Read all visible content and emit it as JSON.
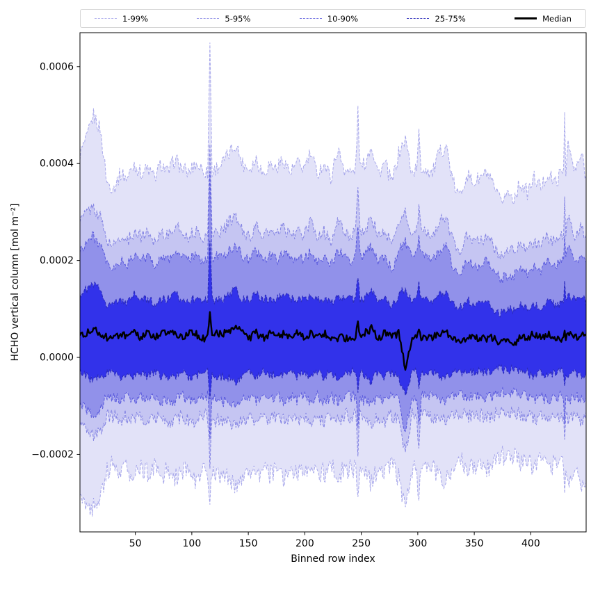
{
  "legend": {
    "items": [
      {
        "label": "1-99%",
        "line": "dashed",
        "color": "rgba(80,80,215,0.45)",
        "weight": 1.2
      },
      {
        "label": "5-95%",
        "line": "dashed",
        "color": "rgba(75,75,215,0.6)",
        "weight": 1.2
      },
      {
        "label": "10-90%",
        "line": "dashed",
        "color": "rgba(60,60,215,0.75)",
        "weight": 1.3
      },
      {
        "label": "25-75%",
        "line": "dashed",
        "color": "rgba(40,40,185,0.95)",
        "weight": 1.5
      },
      {
        "label": "Median",
        "line": "solid",
        "color": "#000000",
        "weight": 3
      }
    ]
  },
  "axes": {
    "xlabel": "Binned row index",
    "ylabel": "HCHO vertical column [mol m⁻²]",
    "xticks": [
      50,
      100,
      150,
      200,
      250,
      300,
      350,
      400
    ],
    "yticks": [
      -0.0002,
      0,
      0.0002,
      0.0004,
      0.0006
    ],
    "xlim": [
      1,
      449
    ],
    "ylim": [
      -0.00036,
      0.00067
    ]
  },
  "chart_data": {
    "type": "area",
    "description": "Percentile fan chart of HCHO vertical column versus binned row index. Shaded bands show 1-99%, 5-95%, 10-90% and 25-75% percentile ranges (blue, dashed boundaries); thick black line is the median. Upper envelope ~0.0004 with narrow spikes to ~0.00065 near row 116 and ~0.0005 near rows 247, 301 and 430; lower envelope ~-0.00025. Values sampled from the plot; value_scale multiplies series values.",
    "value_scale": 1e-05,
    "x": [
      1,
      7,
      13,
      19,
      25,
      31,
      37,
      43,
      49,
      55,
      61,
      67,
      73,
      79,
      85,
      91,
      97,
      103,
      109,
      114,
      116,
      118,
      121,
      127,
      133,
      139,
      145,
      151,
      157,
      163,
      169,
      175,
      181,
      187,
      193,
      199,
      205,
      211,
      217,
      223,
      229,
      235,
      241,
      245,
      247,
      249,
      253,
      259,
      265,
      271,
      277,
      283,
      289,
      295,
      299,
      301,
      303,
      307,
      313,
      319,
      325,
      331,
      337,
      343,
      349,
      355,
      361,
      367,
      373,
      379,
      385,
      391,
      397,
      403,
      409,
      415,
      421,
      427,
      429,
      430,
      431,
      433,
      439,
      445,
      449
    ],
    "series": [
      {
        "name": "p99",
        "label": "99th percentile",
        "jitter": 1.6,
        "line_color": "rgba(80,80,215,0.45)",
        "line_width": 1,
        "values": [
          42,
          45,
          50,
          47,
          36,
          35,
          38,
          37,
          40,
          38,
          39,
          37,
          40,
          38,
          41,
          39,
          38,
          40,
          39,
          38,
          65,
          38,
          39,
          40,
          42,
          44,
          40,
          39,
          41,
          38,
          40,
          39,
          41,
          38,
          40,
          39,
          42,
          38,
          40,
          37,
          43,
          39,
          38,
          39,
          51,
          39,
          40,
          44,
          38,
          40,
          36,
          42,
          45,
          38,
          39,
          46,
          39,
          39,
          38,
          42,
          44,
          36,
          33,
          38,
          36,
          37,
          38,
          35,
          32,
          34,
          33,
          36,
          34,
          37,
          35,
          38,
          36,
          38,
          39,
          51,
          39,
          44,
          38,
          42,
          37
        ]
      },
      {
        "name": "p95",
        "label": "95th percentile",
        "jitter": 1.3,
        "line_color": "rgba(75,75,215,0.6)",
        "line_width": 1,
        "values": [
          28,
          30,
          31,
          29,
          24,
          23,
          25,
          24,
          26,
          25,
          26,
          24,
          26,
          25,
          27,
          26,
          25,
          26,
          25,
          25,
          45,
          25,
          26,
          26,
          28,
          29,
          26,
          25,
          27,
          25,
          26,
          25,
          27,
          25,
          26,
          25,
          28,
          25,
          26,
          24,
          28,
          26,
          25,
          26,
          34,
          26,
          26,
          29,
          25,
          26,
          23,
          28,
          30,
          25,
          26,
          31,
          26,
          26,
          25,
          28,
          29,
          24,
          22,
          25,
          24,
          24,
          25,
          23,
          21,
          22,
          22,
          24,
          22,
          24,
          23,
          25,
          24,
          25,
          26,
          33,
          26,
          29,
          25,
          27,
          24
        ]
      },
      {
        "name": "p90",
        "label": "90th percentile",
        "jitter": 1.1,
        "line_color": "rgba(60,60,215,0.75)",
        "line_width": 1,
        "values": [
          22,
          24,
          25,
          23,
          19,
          18,
          20,
          19,
          21,
          20,
          21,
          19,
          21,
          20,
          22,
          21,
          20,
          21,
          20,
          20,
          38,
          20,
          21,
          21,
          22,
          23,
          21,
          20,
          22,
          20,
          21,
          20,
          22,
          20,
          21,
          20,
          22,
          20,
          21,
          19,
          22,
          21,
          20,
          21,
          28,
          21,
          21,
          23,
          20,
          21,
          18,
          22,
          24,
          20,
          21,
          25,
          21,
          21,
          20,
          22,
          23,
          19,
          17,
          20,
          19,
          19,
          20,
          18,
          16,
          17,
          17,
          19,
          17,
          19,
          18,
          20,
          19,
          20,
          21,
          26,
          21,
          23,
          20,
          21,
          19
        ]
      },
      {
        "name": "p75",
        "label": "75th percentile",
        "jitter": 0.9,
        "line_color": "rgba(40,40,185,0.95)",
        "line_width": 1.1,
        "values": [
          13,
          14,
          15,
          14,
          11,
          11,
          12,
          11,
          13,
          12,
          12,
          11,
          12,
          12,
          13,
          12,
          12,
          12,
          12,
          12,
          24,
          12,
          12,
          12,
          13,
          14,
          12,
          12,
          13,
          12,
          12,
          12,
          13,
          12,
          12,
          12,
          13,
          12,
          12,
          11,
          13,
          12,
          12,
          12,
          17,
          12,
          12,
          14,
          12,
          12,
          10,
          13,
          14,
          12,
          12,
          15,
          12,
          12,
          12,
          13,
          13,
          11,
          10,
          12,
          11,
          11,
          12,
          10,
          9,
          10,
          10,
          11,
          10,
          11,
          10,
          12,
          11,
          11,
          12,
          16,
          12,
          13,
          12,
          13,
          11
        ]
      },
      {
        "name": "median",
        "label": "Median",
        "jitter": 0.8,
        "line_color": "#000000",
        "line_width": 2.4,
        "values": [
          5,
          5,
          6,
          5,
          4,
          4,
          5,
          4,
          5,
          4,
          5,
          4,
          5,
          5,
          5,
          4,
          5,
          5,
          4,
          4,
          10,
          4,
          5,
          5,
          5,
          6,
          5,
          4,
          5,
          4,
          5,
          4,
          5,
          4,
          5,
          4,
          5,
          4,
          5,
          4,
          4,
          4,
          4,
          4,
          7,
          4,
          5,
          6,
          4,
          5,
          4,
          5,
          -2,
          4,
          4,
          6,
          4,
          4,
          4,
          5,
          5,
          4,
          3,
          4,
          4,
          4,
          4,
          4,
          3,
          4,
          3,
          4,
          4,
          5,
          4,
          5,
          4,
          4,
          4,
          6,
          4,
          5,
          4,
          5,
          4
        ]
      },
      {
        "name": "p25",
        "label": "25th percentile",
        "jitter": 0.9,
        "line_color": "rgba(40,40,185,0.95)",
        "line_width": 1.1,
        "values": [
          -3,
          -4,
          -5,
          -4,
          -3,
          -3,
          -4,
          -3,
          -4,
          -3,
          -4,
          -3,
          -4,
          -4,
          -4,
          -3,
          -4,
          -4,
          -3,
          -3,
          -8,
          -3,
          -4,
          -4,
          -4,
          -5,
          -4,
          -3,
          -4,
          -3,
          -4,
          -3,
          -4,
          -3,
          -4,
          -3,
          -4,
          -3,
          -4,
          -3,
          -4,
          -3,
          -3,
          -3,
          -7,
          -3,
          -4,
          -5,
          -3,
          -4,
          -3,
          -4,
          -8,
          -3,
          -3,
          -7,
          -3,
          -3,
          -3,
          -4,
          -4,
          -3,
          -3,
          -3,
          -3,
          -3,
          -3,
          -3,
          -2,
          -3,
          -2,
          -3,
          -3,
          -4,
          -3,
          -4,
          -3,
          -3,
          -3,
          -6,
          -3,
          -4,
          -3,
          -4,
          -3
        ]
      },
      {
        "name": "p10",
        "label": "10th percentile",
        "jitter": 1.2,
        "line_color": "rgba(60,60,215,0.75)",
        "line_width": 1,
        "values": [
          -10,
          -11,
          -12,
          -11,
          -8,
          -8,
          -9,
          -8,
          -9,
          -8,
          -9,
          -8,
          -9,
          -9,
          -9,
          -8,
          -9,
          -9,
          -8,
          -8,
          -16,
          -8,
          -9,
          -9,
          -9,
          -10,
          -9,
          -8,
          -9,
          -8,
          -9,
          -8,
          -9,
          -8,
          -9,
          -8,
          -9,
          -8,
          -9,
          -8,
          -9,
          -8,
          -8,
          -8,
          -14,
          -8,
          -9,
          -10,
          -8,
          -9,
          -8,
          -9,
          -15,
          -8,
          -8,
          -14,
          -8,
          -8,
          -8,
          -9,
          -9,
          -8,
          -7,
          -8,
          -8,
          -8,
          -8,
          -8,
          -7,
          -8,
          -7,
          -8,
          -8,
          -9,
          -8,
          -9,
          -8,
          -8,
          -8,
          -13,
          -8,
          -9,
          -8,
          -9,
          -8
        ]
      },
      {
        "name": "p5",
        "label": "5th percentile",
        "jitter": 1.5,
        "line_color": "rgba(75,75,215,0.6)",
        "line_width": 1,
        "values": [
          -14,
          -15,
          -16,
          -15,
          -12,
          -12,
          -13,
          -12,
          -13,
          -12,
          -13,
          -12,
          -13,
          -13,
          -13,
          -12,
          -13,
          -13,
          -12,
          -12,
          -22,
          -12,
          -13,
          -13,
          -13,
          -14,
          -13,
          -12,
          -13,
          -12,
          -13,
          -12,
          -13,
          -12,
          -13,
          -12,
          -13,
          -12,
          -13,
          -12,
          -13,
          -12,
          -12,
          -12,
          -19,
          -12,
          -13,
          -14,
          -12,
          -13,
          -12,
          -13,
          -20,
          -12,
          -12,
          -19,
          -12,
          -12,
          -12,
          -13,
          -13,
          -12,
          -11,
          -12,
          -12,
          -12,
          -12,
          -12,
          -11,
          -12,
          -11,
          -12,
          -12,
          -13,
          -12,
          -13,
          -12,
          -12,
          -12,
          -18,
          -12,
          -13,
          -12,
          -13,
          -12
        ]
      },
      {
        "name": "p1",
        "label": "1st percentile",
        "jitter": 2.2,
        "line_color": "rgba(80,80,215,0.45)",
        "line_width": 1,
        "values": [
          -28,
          -30,
          -31,
          -29,
          -23,
          -22,
          -24,
          -23,
          -25,
          -23,
          -24,
          -23,
          -25,
          -23,
          -25,
          -24,
          -23,
          -25,
          -24,
          -23,
          -30,
          -23,
          -24,
          -24,
          -25,
          -26,
          -24,
          -23,
          -25,
          -23,
          -24,
          -23,
          -25,
          -23,
          -24,
          -23,
          -25,
          -23,
          -24,
          -22,
          -25,
          -23,
          -23,
          -23,
          -29,
          -23,
          -24,
          -26,
          -23,
          -24,
          -22,
          -25,
          -31,
          -23,
          -23,
          -30,
          -23,
          -23,
          -23,
          -25,
          -26,
          -22,
          -21,
          -23,
          -22,
          -22,
          -23,
          -21,
          -20,
          -21,
          -20,
          -22,
          -21,
          -23,
          -21,
          -23,
          -22,
          -22,
          -23,
          -29,
          -23,
          -26,
          -23,
          -27,
          -24
        ]
      }
    ],
    "bands": [
      {
        "upper": "p99",
        "lower": "p1",
        "fill": "#e2e2f8",
        "label": "1-99%"
      },
      {
        "upper": "p95",
        "lower": "p5",
        "fill": "#c5c5f2",
        "label": "5-95%"
      },
      {
        "upper": "p90",
        "lower": "p10",
        "fill": "#9191ea",
        "label": "10-90%"
      },
      {
        "upper": "p75",
        "lower": "p25",
        "fill": "#3232ea",
        "label": "25-75%"
      }
    ],
    "median_color": "#000000"
  }
}
